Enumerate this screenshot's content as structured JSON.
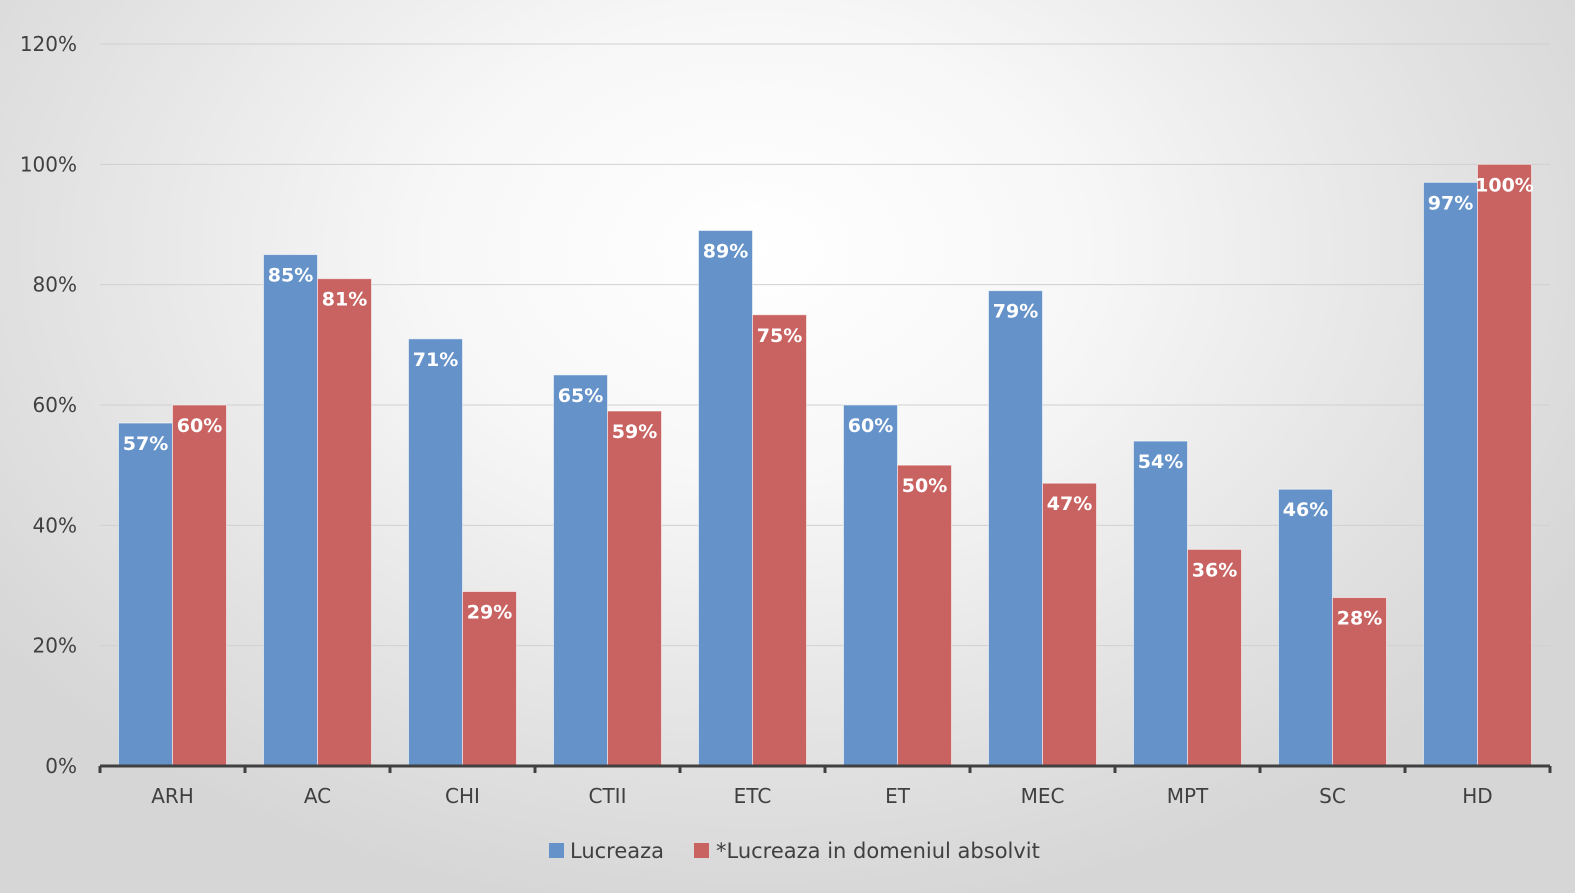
{
  "chart_data": {
    "type": "bar",
    "categories": [
      "ARH",
      "AC",
      "CHI",
      "CTII",
      "ETC",
      "ET",
      "MEC",
      "MPT",
      "SC",
      "HD"
    ],
    "series": [
      {
        "name": "Lucreaza",
        "color": "#6592C9",
        "values": [
          57,
          85,
          71,
          65,
          89,
          60,
          79,
          54,
          46,
          97
        ],
        "labels": [
          "57%",
          "85%",
          "71%",
          "65%",
          "89%",
          "60%",
          "79%",
          "54%",
          "46%",
          "97%"
        ]
      },
      {
        "name": "*Lucreaza in domeniul absolvit",
        "color": "#C96362",
        "values": [
          60,
          81,
          29,
          59,
          75,
          50,
          47,
          36,
          28,
          100
        ],
        "labels": [
          "60%",
          "81%",
          "29%",
          "59%",
          "75%",
          "50%",
          "47%",
          "36%",
          "28%",
          "100%"
        ]
      }
    ],
    "yticks": [
      "0%",
      "20%",
      "40%",
      "60%",
      "80%",
      "100%",
      "120%"
    ],
    "ylim": [
      0,
      120
    ],
    "grid": true,
    "legend_position": "bottom",
    "title": "",
    "xlabel": "",
    "ylabel": ""
  }
}
